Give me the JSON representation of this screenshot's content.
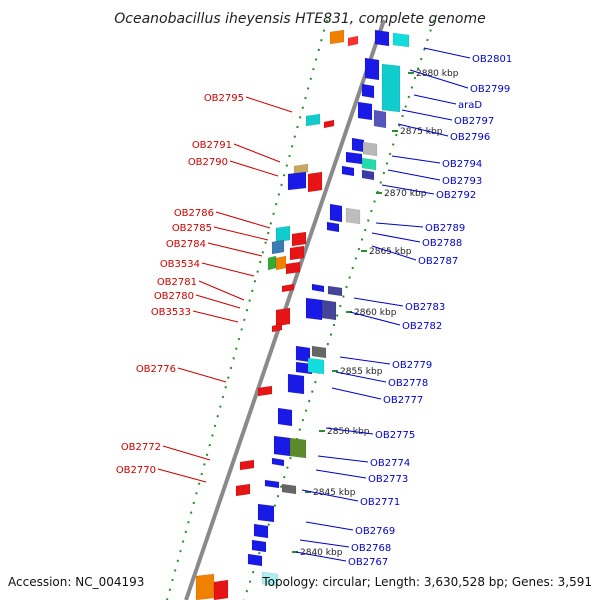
{
  "title": "Oceanobacillus iheyensis HTE831, complete genome",
  "accession": "Accession: NC_004193",
  "topology": "Topology: circular; Length: 3,630,528 bp; Genes: 3,591",
  "colors": {
    "backbone": "#888888",
    "ticks": "#2e8b2e",
    "forward_label": "#0000cc",
    "reverse_label": "#cc0000",
    "forward_gene": "#1414e6",
    "reverse_gene": "#e61414"
  },
  "kbp_marks": [
    "2880 kbp",
    "2875 kbp",
    "2870 kbp",
    "2865 kbp",
    "2860 kbp",
    "2855 kbp",
    "2850 kbp",
    "2845 kbp",
    "2840 kbp"
  ],
  "right_labels": [
    "OB2801",
    "OB2799",
    "araD",
    "OB2797",
    "OB2796",
    "OB2794",
    "OB2793",
    "OB2792",
    "OB2789",
    "OB2788",
    "OB2787",
    "OB2783",
    "OB2782",
    "OB2779",
    "OB2778",
    "OB2777",
    "OB2775",
    "OB2774",
    "OB2773",
    "OB2771",
    "OB2769",
    "OB2768",
    "OB2767"
  ],
  "left_labels": [
    "OB2795",
    "OB2791",
    "OB2790",
    "OB2786",
    "OB2785",
    "OB2784",
    "OB3534",
    "OB2781",
    "OB2780",
    "OB3533",
    "OB2776",
    "OB2772",
    "OB2770"
  ]
}
